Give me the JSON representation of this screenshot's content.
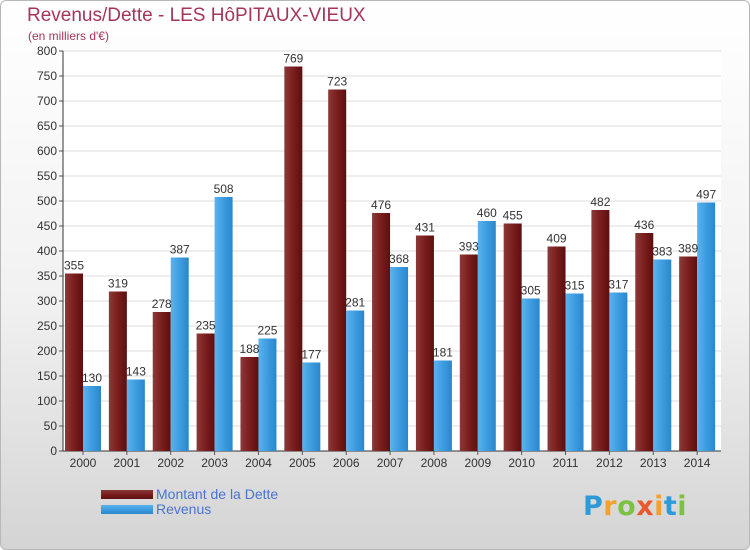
{
  "colors": {
    "debt": "#7b1d1d",
    "debt_top": "#8a3a3a",
    "debt_bottom": "#5c0f0f",
    "revenue": "#3d9ce0",
    "revenue_top": "#5ab3ee",
    "revenue_bottom": "#2b87cc",
    "title": "#a4365a",
    "legend_text": "#4a74d0"
  },
  "chart_data": {
    "type": "bar",
    "title": "Revenus/Dette - LES HôPITAUX-VIEUX",
    "subtitle": "(en milliers d'€)",
    "xlabel": "",
    "ylabel": "",
    "ylim": [
      0,
      800
    ],
    "ytick_step": 50,
    "grid": true,
    "categories": [
      "2000",
      "2001",
      "2002",
      "2003",
      "2004",
      "2005",
      "2006",
      "2007",
      "2008",
      "2009",
      "2010",
      "2011",
      "2012",
      "2013",
      "2014"
    ],
    "series": [
      {
        "name": "Montant de la Dette",
        "values": [
          355,
          319,
          278,
          235,
          188,
          769,
          723,
          476,
          431,
          393,
          455,
          409,
          482,
          436,
          389
        ]
      },
      {
        "name": "Revenus",
        "values": [
          130,
          143,
          387,
          508,
          225,
          177,
          281,
          368,
          181,
          460,
          305,
          315,
          317,
          383,
          497
        ]
      }
    ],
    "legend": "bottom-left"
  },
  "logo": {
    "letters": [
      "P",
      "r",
      "o",
      "x",
      "i",
      "t",
      "i"
    ],
    "colors": [
      "#2e9ad8",
      "#f2a12c",
      "#7cc142",
      "#e85a2d",
      "#f2a12c",
      "#2e9ad8",
      "#7cc142"
    ]
  }
}
